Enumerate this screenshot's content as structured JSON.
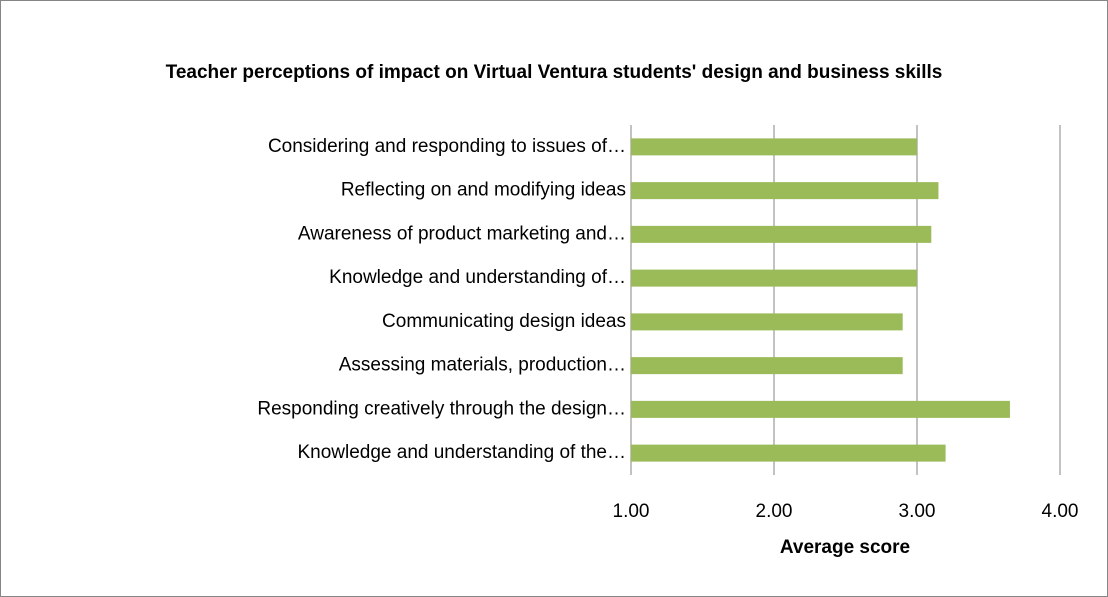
{
  "chart_data": {
    "type": "bar",
    "orientation": "horizontal",
    "title": "Teacher perceptions of  impact on Virtual Ventura students' design and business skills",
    "xlabel": "Average score",
    "categories": [
      "Considering and responding to issues of…",
      "Reflecting on and modifying ideas",
      "Awareness of product marketing and…",
      "Knowledge and understanding of…",
      "Communicating design ideas",
      "Assessing materials, production…",
      "Responding creatively through the design…",
      "Knowledge and understanding of the…"
    ],
    "values": [
      3.0,
      3.15,
      3.1,
      3.0,
      2.9,
      2.9,
      3.65,
      3.2
    ],
    "color": "#9bbb59",
    "xlim": [
      1,
      4
    ],
    "xticks": [
      {
        "value": 1,
        "label": "1.00"
      },
      {
        "value": 2,
        "label": "2.00"
      },
      {
        "value": 3,
        "label": "3.00"
      },
      {
        "value": 4,
        "label": "4.00"
      }
    ],
    "grid": true
  }
}
